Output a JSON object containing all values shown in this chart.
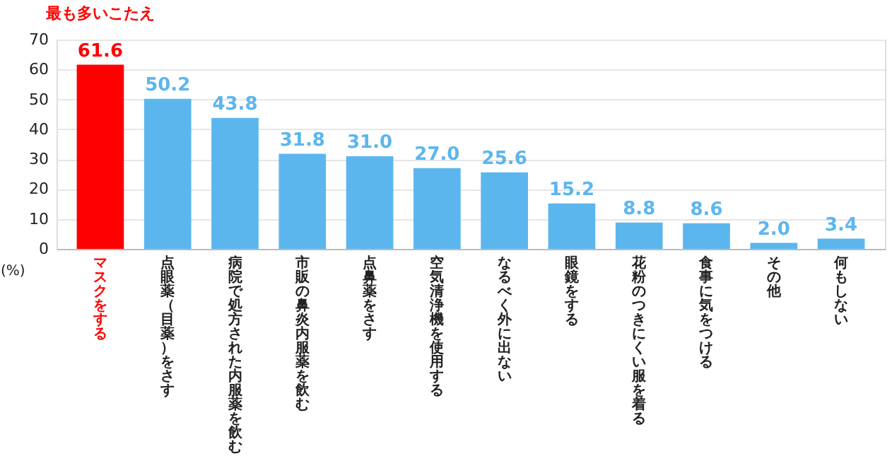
{
  "chart_data": {
    "type": "bar",
    "categories": [
      "マスクをする",
      "点眼薬（目薬）をさす",
      "病院で処方された内服薬を飲む",
      "市販の鼻炎内服薬を飲む",
      "点鼻薬をさす",
      "空気清浄機を使用する",
      "なるべく外に出ない",
      "眼鏡をする",
      "花粉のつきにくい服を着る",
      "食事に気をつける",
      "その他",
      "何もしない"
    ],
    "values": [
      61.6,
      50.2,
      43.8,
      31.8,
      31.0,
      27.0,
      25.6,
      15.2,
      8.8,
      8.6,
      2.0,
      3.4
    ],
    "value_labels": [
      "61.6",
      "50.2",
      "43.8",
      "31.8",
      "31.0",
      "27.0",
      "25.6",
      "15.2",
      "8.8",
      "8.6",
      "2.0",
      "3.4"
    ],
    "colors": [
      "#ff0000",
      "#5cb6ee",
      "#5cb6ee",
      "#5cb6ee",
      "#5cb6ee",
      "#5cb6ee",
      "#5cb6ee",
      "#5cb6ee",
      "#5cb6ee",
      "#5cb6ee",
      "#5cb6ee",
      "#5cb6ee"
    ],
    "ylabel": "(%)",
    "ylim": [
      0,
      70
    ],
    "yticks": [
      0,
      10,
      20,
      30,
      40,
      50,
      60,
      70
    ],
    "grid": "y",
    "annotations": [
      "最も多いこたえ"
    ]
  }
}
